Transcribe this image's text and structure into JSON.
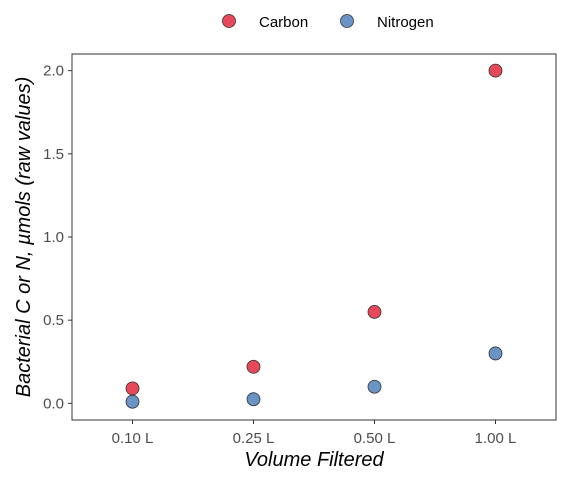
{
  "chart_data": {
    "type": "scatter",
    "title": "",
    "xlabel": "Volume Filtered",
    "ylabel": "Bacterial C or N, µmols (raw values)",
    "categories": [
      "0.10 L",
      "0.25 L",
      "0.50 L",
      "1.00 L"
    ],
    "ylim": [
      -0.1,
      2.1
    ],
    "yticks": [
      0.0,
      0.5,
      1.0,
      1.5,
      2.0
    ],
    "ytick_labels": [
      "0.0",
      "0.5",
      "1.0",
      "1.5",
      "2.0"
    ],
    "grid": false,
    "legend_position": "top",
    "series": [
      {
        "name": "Carbon",
        "color": "#E8495A",
        "values": [
          0.09,
          0.22,
          0.55,
          2.0
        ]
      },
      {
        "name": "Nitrogen",
        "color": "#6A93C6",
        "values": [
          0.01,
          0.025,
          0.1,
          0.3
        ]
      }
    ]
  }
}
